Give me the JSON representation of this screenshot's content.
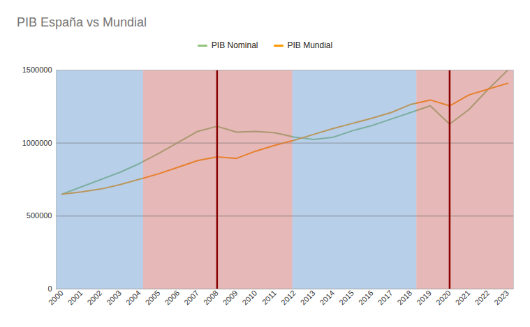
{
  "chart_data": {
    "type": "line",
    "title": "PIB España vs Mundial",
    "x": [
      2000,
      2001,
      2002,
      2003,
      2004,
      2005,
      2006,
      2007,
      2008,
      2009,
      2010,
      2011,
      2012,
      2013,
      2014,
      2015,
      2016,
      2017,
      2018,
      2019,
      2020,
      2021,
      2022,
      2023
    ],
    "series": [
      {
        "name": "PIB Nominal",
        "color": "#93c47d",
        "values": [
          650000,
          700000,
          750000,
          800000,
          860000,
          930000,
          1005000,
          1080000,
          1115000,
          1075000,
          1080000,
          1070000,
          1040000,
          1025000,
          1040000,
          1085000,
          1120000,
          1165000,
          1210000,
          1255000,
          1130000,
          1230000,
          1370000,
          1500000
        ]
      },
      {
        "name": "PIB Mundial",
        "color": "#ff9900",
        "values": [
          650000,
          665000,
          685000,
          715000,
          752000,
          790000,
          835000,
          880000,
          905000,
          895000,
          945000,
          985000,
          1020000,
          1060000,
          1100000,
          1135000,
          1170000,
          1210000,
          1265000,
          1295000,
          1255000,
          1330000,
          1370000,
          1410000
        ]
      }
    ],
    "xlim": [
      1999.7,
      2023.3
    ],
    "xticks": [
      2000,
      2001,
      2002,
      2003,
      2004,
      2005,
      2006,
      2007,
      2008,
      2009,
      2010,
      2011,
      2012,
      2013,
      2014,
      2015,
      2016,
      2017,
      2018,
      2019,
      2020,
      2021,
      2022,
      2023
    ],
    "ylim": [
      0,
      1500000
    ],
    "yticks": [
      0,
      500000,
      1000000,
      1500000
    ],
    "grid": true,
    "legend": "top",
    "bands": [
      {
        "x1": 1999.7,
        "x2": 2004.2,
        "color": "#6295cf"
      },
      {
        "x1": 2004.2,
        "x2": 2011.9,
        "color": "#c86262"
      },
      {
        "x1": 2011.9,
        "x2": 2018.3,
        "color": "#6295cf"
      },
      {
        "x1": 2018.3,
        "x2": 2023.3,
        "color": "#c86262"
      }
    ],
    "vlines": {
      "x": [
        2008,
        2020
      ],
      "color": "#8b0000"
    }
  }
}
